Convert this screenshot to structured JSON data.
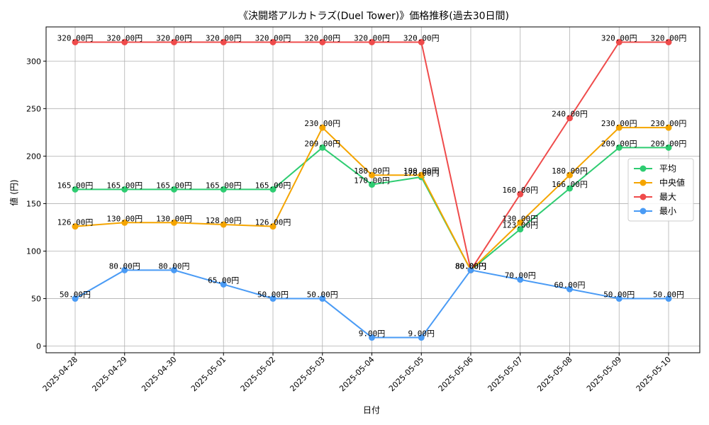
{
  "chart_data": {
    "type": "line",
    "title": "《決闘塔アルカトラズ(Duel Tower)》価格推移(過去30日間)",
    "xlabel": "日付",
    "ylabel": "値 (円)",
    "ylim": [
      -7,
      336
    ],
    "yticks": [
      0,
      50,
      100,
      150,
      200,
      250,
      300
    ],
    "grid": true,
    "legend_position": "right",
    "value_suffix": "円",
    "categories": [
      "2025-04-28",
      "2025-04-29",
      "2025-04-30",
      "2025-05-01",
      "2025-05-02",
      "2025-05-03",
      "2025-05-04",
      "2025-05-05",
      "2025-05-06",
      "2025-05-07",
      "2025-05-08",
      "2025-05-09",
      "2025-05-10"
    ],
    "series": [
      {
        "name": "平均",
        "color": "#2ecc71",
        "values": [
          165,
          165,
          165,
          165,
          165,
          209,
          170,
          178,
          80,
          123,
          166,
          209,
          209
        ]
      },
      {
        "name": "中央値",
        "color": "#f5a500",
        "values": [
          126,
          130,
          130,
          128,
          126,
          230,
          180,
          180,
          80,
          130,
          180,
          230,
          230
        ]
      },
      {
        "name": "最大",
        "color": "#ef4b4b",
        "values": [
          320,
          320,
          320,
          320,
          320,
          320,
          320,
          320,
          80,
          160,
          240,
          320,
          320
        ]
      },
      {
        "name": "最小",
        "color": "#4a9bf5",
        "values": [
          50,
          80,
          80,
          65,
          50,
          50,
          9,
          9,
          80,
          70,
          60,
          50,
          50
        ]
      }
    ]
  }
}
